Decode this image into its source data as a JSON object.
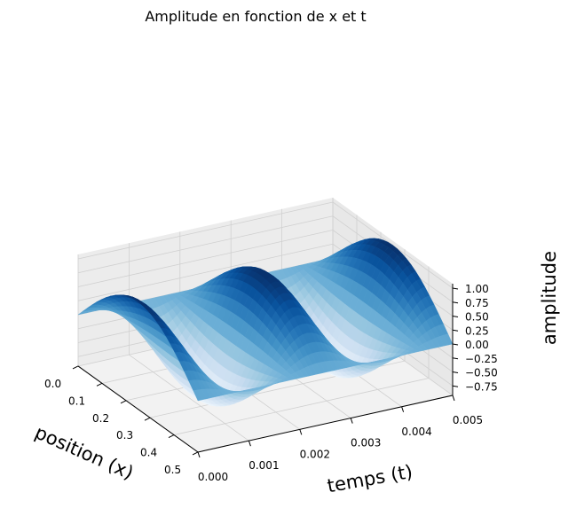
{
  "chart_data": {
    "type": "surface",
    "title": "Amplitude en fonction de x et t",
    "xlabel": "position (x)",
    "ylabel": "temps (t)",
    "zlabel": "amplitude",
    "x_ticks": [
      "0.0",
      "0.1",
      "0.2",
      "0.3",
      "0.4",
      "0.5"
    ],
    "t_ticks": [
      "0.000",
      "0.001",
      "0.002",
      "0.003",
      "0.004",
      "0.005"
    ],
    "z_ticks": [
      "−0.75",
      "−0.50",
      "−0.25",
      "0.00",
      "0.25",
      "0.50",
      "0.75",
      "1.00"
    ],
    "xlim": [
      0,
      0.5
    ],
    "tlim": [
      0,
      0.005
    ],
    "zlim": [
      -0.92,
      1.08
    ],
    "colormap": "Blues",
    "surface_rows": [
      {
        "t": 0.0,
        "amplitude": [
          0.0,
          0.383,
          0.707,
          0.924,
          1.0,
          0.924,
          0.707,
          0.383,
          0.0
        ]
      },
      {
        "t": 0.001,
        "amplitude": [
          0.0,
          0.118,
          0.218,
          0.286,
          0.309,
          0.286,
          0.218,
          0.118,
          0.0
        ]
      },
      {
        "t": 0.002,
        "amplitude": [
          0.0,
          -0.31,
          -0.572,
          -0.748,
          -0.809,
          -0.748,
          -0.572,
          -0.31,
          0.0
        ]
      },
      {
        "t": 0.0025,
        "amplitude": [
          0.0,
          -0.383,
          -0.707,
          -0.924,
          -1.0,
          -0.924,
          -0.707,
          -0.383,
          0.0
        ]
      },
      {
        "t": 0.003,
        "amplitude": [
          0.0,
          -0.31,
          -0.572,
          -0.748,
          -0.809,
          -0.748,
          -0.572,
          -0.31,
          0.0
        ]
      },
      {
        "t": 0.004,
        "amplitude": [
          0.0,
          0.118,
          0.218,
          0.286,
          0.309,
          0.286,
          0.218,
          0.118,
          0.0
        ]
      },
      {
        "t": 0.005,
        "amplitude": [
          0.0,
          0.383,
          0.707,
          0.924,
          1.0,
          0.924,
          0.707,
          0.383,
          0.0
        ]
      }
    ]
  }
}
